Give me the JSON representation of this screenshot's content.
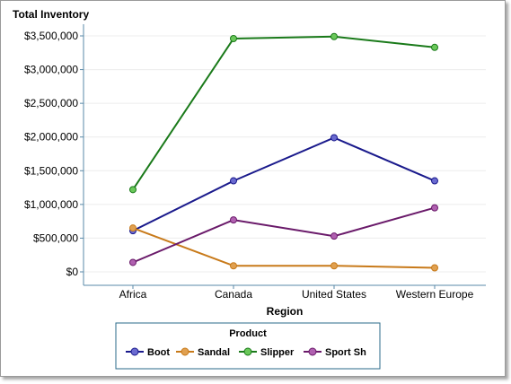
{
  "chart_data": {
    "type": "line",
    "ylabel": "Total Inventory",
    "xlabel": "Region",
    "categories": [
      "Africa",
      "Canada",
      "United States",
      "Western Europe"
    ],
    "yticks": [
      "$0",
      "$500,000",
      "$1,000,000",
      "$1,500,000",
      "$2,000,000",
      "$2,500,000",
      "$3,000,000",
      "$3,500,000"
    ],
    "ylim": [
      0,
      3500000
    ],
    "grid": true,
    "legend_title": "Product",
    "legend_position": "bottom",
    "series": [
      {
        "name": "Boot",
        "color": "#1a1a8c",
        "marker": "#6a6ad0",
        "values": [
          610000,
          1350000,
          1990000,
          1350000
        ]
      },
      {
        "name": "Sandal",
        "color": "#c87a1a",
        "marker": "#e0a050",
        "values": [
          650000,
          90000,
          90000,
          60000
        ]
      },
      {
        "name": "Slipper",
        "color": "#1a7a1a",
        "marker": "#6ac85a",
        "values": [
          1220000,
          3460000,
          3490000,
          3330000
        ]
      },
      {
        "name": "Sport Sh",
        "color": "#6a1a6a",
        "marker": "#b060b0",
        "values": [
          140000,
          770000,
          530000,
          950000
        ]
      }
    ]
  }
}
